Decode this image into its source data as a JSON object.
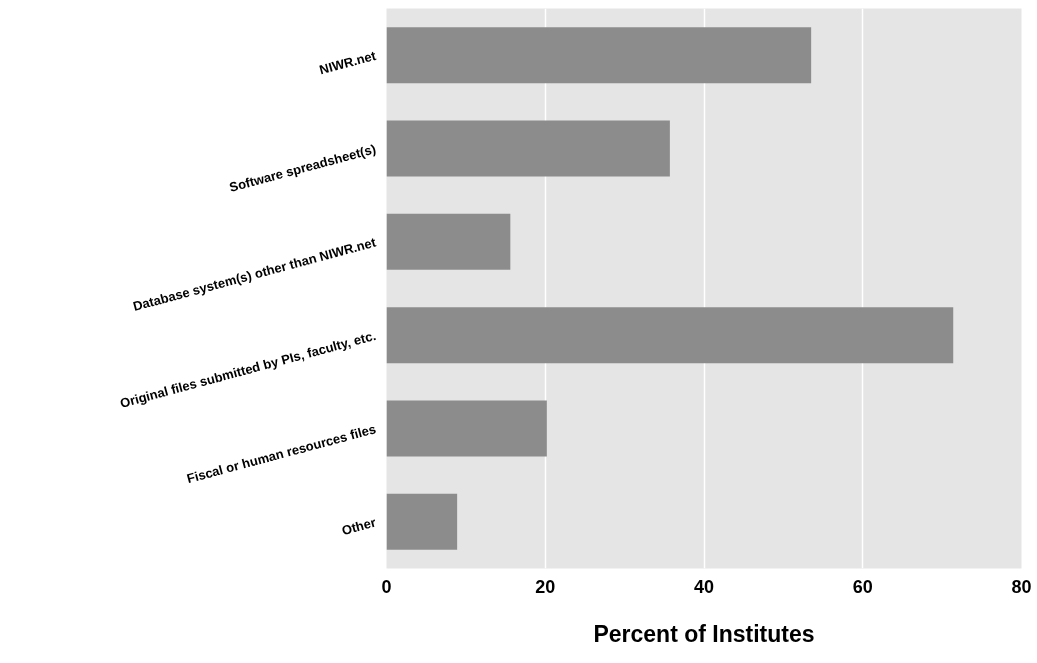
{
  "chart_data": {
    "type": "bar",
    "orientation": "horizontal",
    "xlabel": "Percent of Institutes",
    "categories": [
      "NIWR.net",
      "Software spreadsheet(s)",
      "Database system(s) other than NIWR.net",
      "Original files submitted by PIs, faculty, etc.",
      "Fiscal or human resources files",
      "Other"
    ],
    "values": [
      53.5,
      35.7,
      15.6,
      71.4,
      20.2,
      8.9
    ],
    "color": "#8c8c8c",
    "xlim": [
      0,
      80
    ],
    "xticks": [
      0,
      20,
      40,
      60,
      80
    ],
    "grid": "x"
  }
}
